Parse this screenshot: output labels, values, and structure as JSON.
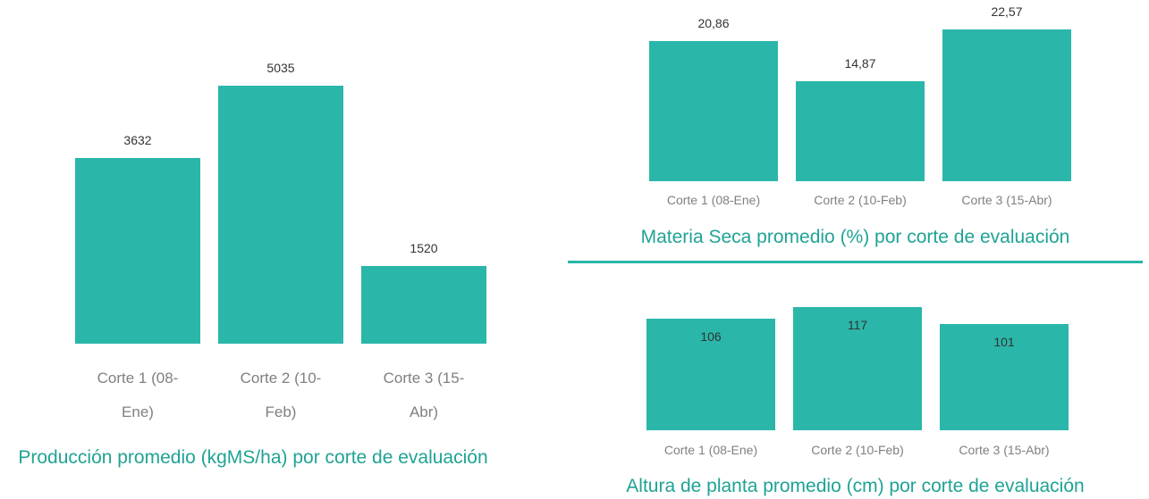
{
  "chart_data": [
    {
      "type": "bar",
      "title": "Producción promedio (kgMS/ha) por corte de evaluación",
      "categories": [
        "Corte 1 (08-Ene)",
        "Corte 2 (10-Feb)",
        "Corte 3 (15-Abr)"
      ],
      "values": [
        3632,
        5035,
        1520
      ],
      "color": "#2ab7a9"
    },
    {
      "type": "bar",
      "title": "Materia Seca promedio (%) por corte de evaluación",
      "categories": [
        "Corte 1 (08-Ene)",
        "Corte 2 (10-Feb)",
        "Corte 3 (15-Abr)"
      ],
      "values": [
        20.86,
        14.87,
        22.57
      ],
      "value_labels": [
        "20,86",
        "14,87",
        "22,57"
      ],
      "color": "#2ab7a9"
    },
    {
      "type": "bar",
      "title": "Altura de planta promedio (cm) por corte de evaluación",
      "categories": [
        "Corte 1 (08-Ene)",
        "Corte 2 (10-Feb)",
        "Corte 3 (15-Abr)"
      ],
      "values": [
        106,
        117,
        101
      ],
      "color": "#2ab7a9"
    }
  ]
}
